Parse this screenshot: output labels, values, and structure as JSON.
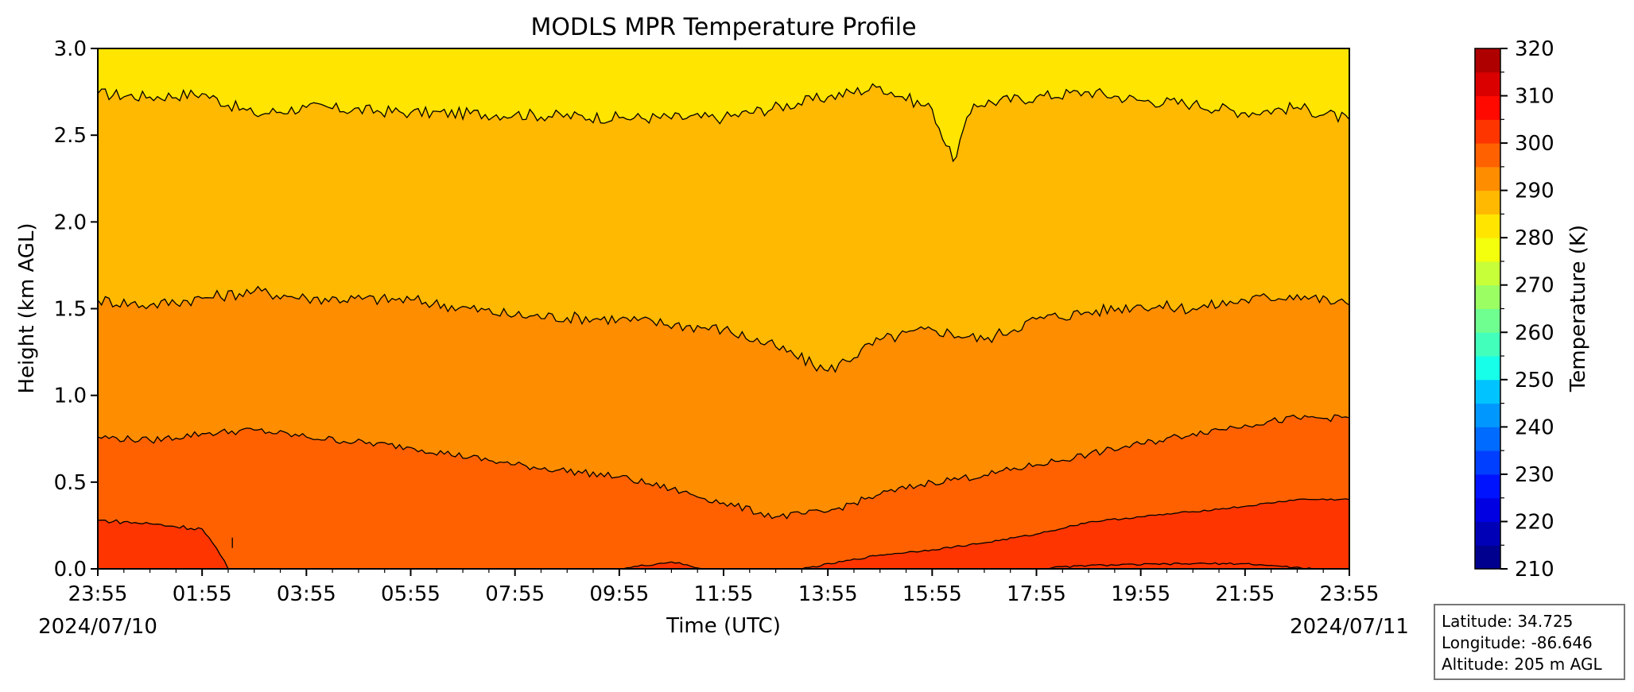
{
  "chart_data": {
    "type": "contourf",
    "title": "MODLS MPR Temperature Profile",
    "xlabel": "Time (UTC)",
    "ylabel": "Height (km AGL)",
    "x_ticks": [
      "23:55",
      "01:55",
      "03:55",
      "05:55",
      "07:55",
      "09:55",
      "11:55",
      "13:55",
      "15:55",
      "17:55",
      "19:55",
      "21:55",
      "23:55"
    ],
    "x_ticks_hours": [
      0,
      2,
      4,
      6,
      8,
      10,
      12,
      14,
      16,
      18,
      20,
      22,
      24
    ],
    "x_start_date": "2024/07/10",
    "x_end_date": "2024/07/11",
    "xlim_hours": [
      0,
      24
    ],
    "ylim": [
      0.0,
      3.0
    ],
    "y_ticks": [
      "0.0",
      "0.5",
      "1.0",
      "1.5",
      "2.0",
      "2.5",
      "3.0"
    ],
    "colorbar": {
      "label": "Temperature (K)",
      "range": [
        210,
        320
      ],
      "tick_labels": [
        "210",
        "220",
        "230",
        "240",
        "250",
        "260",
        "270",
        "280",
        "290",
        "300",
        "310",
        "320"
      ],
      "level_step": 5,
      "colors": [
        "#00008f",
        "#0000b7",
        "#0000e3",
        "#0013ff",
        "#003fff",
        "#006bff",
        "#0097ff",
        "#00c3ff",
        "#17ffe8",
        "#43ffbc",
        "#6fff90",
        "#9bff64",
        "#c7ff38",
        "#f3ff0c",
        "#ffe500",
        "#ffb900",
        "#ff8d00",
        "#ff6100",
        "#ff3500",
        "#ff0900",
        "#db0000",
        "#af0000"
      ]
    },
    "fill_bands": [
      {
        "range_K": [
          280,
          285
        ],
        "color": "#ffe500"
      },
      {
        "range_K": [
          285,
          290
        ],
        "color": "#ffb900"
      },
      {
        "range_K": [
          290,
          295
        ],
        "color": "#ff8d00"
      },
      {
        "range_K": [
          295,
          300
        ],
        "color": "#ff6100"
      },
      {
        "range_K": [
          300,
          305
        ],
        "color": "#ff3500"
      }
    ],
    "contours": [
      {
        "level_K": 285,
        "points_hours_km": [
          [
            0,
            2.74
          ],
          [
            1,
            2.72
          ],
          [
            2,
            2.74
          ],
          [
            3,
            2.62
          ],
          [
            4,
            2.66
          ],
          [
            6,
            2.63
          ],
          [
            8,
            2.62
          ],
          [
            10,
            2.6
          ],
          [
            12,
            2.6
          ],
          [
            14,
            2.72
          ],
          [
            15,
            2.78
          ],
          [
            16,
            2.65
          ],
          [
            16.4,
            2.35
          ],
          [
            16.8,
            2.68
          ],
          [
            18,
            2.72
          ],
          [
            19,
            2.75
          ],
          [
            20,
            2.7
          ],
          [
            21,
            2.68
          ],
          [
            22,
            2.63
          ],
          [
            23,
            2.66
          ],
          [
            24,
            2.59
          ]
        ]
      },
      {
        "level_K": 290,
        "points_hours_km": [
          [
            0,
            1.55
          ],
          [
            1,
            1.52
          ],
          [
            2,
            1.56
          ],
          [
            3,
            1.6
          ],
          [
            4,
            1.56
          ],
          [
            6,
            1.55
          ],
          [
            8,
            1.46
          ],
          [
            10,
            1.44
          ],
          [
            12,
            1.38
          ],
          [
            13,
            1.28
          ],
          [
            14,
            1.14
          ],
          [
            15,
            1.32
          ],
          [
            16,
            1.38
          ],
          [
            17,
            1.32
          ],
          [
            18,
            1.44
          ],
          [
            19,
            1.48
          ],
          [
            20,
            1.52
          ],
          [
            21,
            1.5
          ],
          [
            22,
            1.55
          ],
          [
            23,
            1.58
          ],
          [
            24,
            1.52
          ]
        ]
      },
      {
        "level_K": 295,
        "points_hours_km": [
          [
            0,
            0.76
          ],
          [
            1,
            0.74
          ],
          [
            2,
            0.78
          ],
          [
            3,
            0.8
          ],
          [
            4,
            0.76
          ],
          [
            6,
            0.7
          ],
          [
            8,
            0.6
          ],
          [
            10,
            0.53
          ],
          [
            11,
            0.46
          ],
          [
            12,
            0.38
          ],
          [
            13,
            0.3
          ],
          [
            14,
            0.33
          ],
          [
            15,
            0.43
          ],
          [
            16,
            0.5
          ],
          [
            17,
            0.54
          ],
          [
            18,
            0.6
          ],
          [
            19,
            0.66
          ],
          [
            20,
            0.72
          ],
          [
            21,
            0.78
          ],
          [
            22,
            0.83
          ],
          [
            23,
            0.87
          ],
          [
            24,
            0.87
          ]
        ]
      },
      {
        "level_K": 300,
        "points_hours_km": [
          [
            0,
            0.28
          ],
          [
            1,
            0.26
          ],
          [
            2,
            0.23
          ],
          [
            2.2,
            0.15
          ],
          [
            2.5,
            0.0
          ]
        ]
      },
      {
        "level_K": 300,
        "points_hours_km": [
          [
            13.5,
            0.0
          ],
          [
            15,
            0.08
          ],
          [
            16,
            0.11
          ],
          [
            17,
            0.15
          ],
          [
            18,
            0.2
          ],
          [
            19,
            0.27
          ],
          [
            20,
            0.3
          ],
          [
            21,
            0.33
          ],
          [
            22,
            0.36
          ],
          [
            23,
            0.4
          ],
          [
            24,
            0.4
          ]
        ]
      },
      {
        "level_K": 305,
        "points_hours_km": [
          [
            10,
            0.0
          ],
          [
            11,
            0.04
          ],
          [
            11.6,
            0.0
          ]
        ]
      },
      {
        "level_K": 305,
        "points_hours_km": [
          [
            18,
            0.0
          ],
          [
            19,
            0.02
          ],
          [
            21,
            0.03
          ],
          [
            22,
            0.03
          ],
          [
            23.3,
            0.0
          ]
        ]
      }
    ],
    "site": {
      "latitude": "Latitude: 34.725",
      "longitude": "Longitude: -86.646",
      "altitude": "Altitude: 205 m AGL"
    }
  }
}
